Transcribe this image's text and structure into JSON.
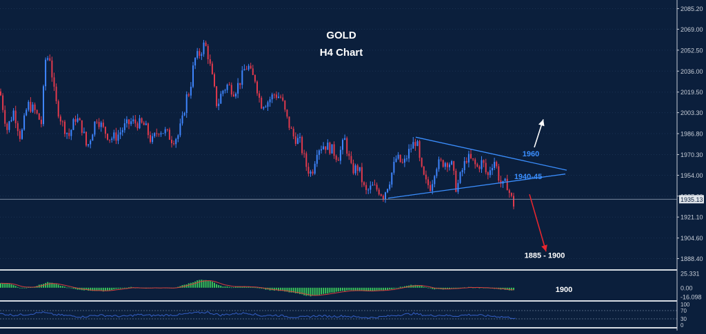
{
  "colors": {
    "background": "#0b1f3c",
    "grid": "#1a3253",
    "up_candle": "#3f86ff",
    "down_candle": "#e23a4d",
    "trendline": "#3b8fff",
    "label_blue": "#3b8fff",
    "bullish_arrow": "#ffffff",
    "bearish_arrow": "#e8262e",
    "macd_histogram": "#39c35a",
    "signal_line": "#d93f3f",
    "rsi_line": "#3560c8",
    "text": "#ffffff",
    "axis_text": "#c8ced8",
    "separator": "#d8dde4"
  },
  "chart_data": [
    {
      "type": "candlestick",
      "symbol": "GOLD",
      "title": "GOLD",
      "subtitle": "H4 Chart",
      "ylim": [
        1880,
        2092
      ],
      "y_ticks": [
        {
          "value": 2085.2,
          "label": "2085.20"
        },
        {
          "value": 2069.0,
          "label": "2069.00"
        },
        {
          "value": 2052.5,
          "label": "2052.50"
        },
        {
          "value": 2036.0,
          "label": "2036.00"
        },
        {
          "value": 2019.5,
          "label": "2019.50"
        },
        {
          "value": 2003.3,
          "label": "2003.30"
        },
        {
          "value": 1986.8,
          "label": "1986.80"
        },
        {
          "value": 1970.3,
          "label": "1970.30"
        },
        {
          "value": 1954.0,
          "label": "1954.00"
        },
        {
          "value": 1937.6,
          "label": "1937.60"
        },
        {
          "value": 1921.1,
          "label": "1921.10"
        },
        {
          "value": 1904.6,
          "label": "1904.60"
        },
        {
          "value": 1888.4,
          "label": "1888.40"
        }
      ],
      "current_price": 1935.13,
      "current_price_label": "1935.13",
      "price_path": [
        [
          0,
          2020
        ],
        [
          10,
          1990
        ],
        [
          20,
          2005
        ],
        [
          30,
          1983
        ],
        [
          40,
          2010
        ],
        [
          50,
          2005
        ],
        [
          60,
          1995
        ],
        [
          66,
          2045
        ],
        [
          72,
          2048
        ],
        [
          80,
          2013
        ],
        [
          90,
          1995
        ],
        [
          100,
          1985
        ],
        [
          110,
          2000
        ],
        [
          120,
          1990
        ],
        [
          126,
          1975
        ],
        [
          132,
          1985
        ],
        [
          140,
          2000
        ],
        [
          150,
          1990
        ],
        [
          160,
          1983
        ],
        [
          170,
          1985
        ],
        [
          180,
          1992
        ],
        [
          190,
          1996
        ],
        [
          200,
          1995
        ],
        [
          210,
          1993
        ],
        [
          220,
          1980
        ],
        [
          230,
          1990
        ],
        [
          240,
          1988
        ],
        [
          250,
          1982
        ],
        [
          258,
          1985
        ],
        [
          265,
          1998
        ],
        [
          270,
          2015
        ],
        [
          275,
          2020
        ],
        [
          282,
          2045
        ],
        [
          290,
          2050
        ],
        [
          297,
          2058
        ],
        [
          302,
          2048
        ],
        [
          308,
          2030
        ],
        [
          315,
          2008
        ],
        [
          322,
          2020
        ],
        [
          330,
          2025
        ],
        [
          340,
          2020
        ],
        [
          350,
          2030
        ],
        [
          355,
          2038
        ],
        [
          360,
          2040
        ],
        [
          365,
          2032
        ],
        [
          370,
          2030
        ],
        [
          378,
          2010
        ],
        [
          388,
          2012
        ],
        [
          398,
          2018
        ],
        [
          408,
          2015
        ],
        [
          415,
          2000
        ],
        [
          425,
          1985
        ],
        [
          435,
          1980
        ],
        [
          445,
          1960
        ],
        [
          452,
          1955
        ],
        [
          460,
          1975
        ],
        [
          470,
          1978
        ],
        [
          480,
          1975
        ],
        [
          490,
          1968
        ],
        [
          500,
          1982
        ],
        [
          510,
          1958
        ],
        [
          520,
          1960
        ],
        [
          530,
          1940
        ],
        [
          540,
          1945
        ],
        [
          550,
          1942
        ],
        [
          556,
          1938
        ],
        [
          565,
          1950
        ],
        [
          575,
          1968
        ],
        [
          585,
          1962
        ],
        [
          595,
          1975
        ],
        [
          604,
          1982
        ],
        [
          610,
          1960
        ],
        [
          617,
          1948
        ],
        [
          625,
          1945
        ],
        [
          632,
          1962
        ],
        [
          642,
          1964
        ],
        [
          650,
          1965
        ],
        [
          655,
          1962
        ],
        [
          662,
          1943
        ],
        [
          670,
          1957
        ],
        [
          677,
          1968
        ],
        [
          685,
          1965
        ],
        [
          692,
          1960
        ],
        [
          700,
          1965
        ],
        [
          707,
          1952
        ],
        [
          712,
          1962
        ],
        [
          718,
          1966
        ],
        [
          722,
          1955
        ],
        [
          728,
          1945
        ],
        [
          735,
          1948
        ],
        [
          740,
          1938
        ],
        [
          746,
          1930
        ]
      ],
      "trendlines": [
        {
          "from": [
            563,
            1936
          ],
          "to": [
            820,
            1955
          ]
        },
        {
          "from": [
            603,
            1984
          ],
          "to": [
            822,
            1958
          ]
        }
      ],
      "annotations": [
        {
          "text": "1960",
          "x": 770,
          "y": 1969,
          "color": "#3b8fff"
        },
        {
          "text": "1940-45",
          "x": 766,
          "y": 1951,
          "color": "#3b8fff"
        },
        {
          "text": "1885 - 1900",
          "x": 790,
          "y": 1889,
          "color": "#ffffff"
        }
      ],
      "arrows": [
        {
          "direction": "up",
          "from": [
            775,
            1976
          ],
          "to": [
            788,
            1998
          ],
          "color": "#ffffff"
        },
        {
          "direction": "down",
          "from": [
            768,
            1939
          ],
          "to": [
            792,
            1894
          ],
          "color": "#e8262e"
        }
      ]
    },
    {
      "type": "histogram",
      "indicator": "MACD",
      "ylim": [
        -22,
        30
      ],
      "y_ticks": [
        {
          "value": 25.331,
          "label": "25.331"
        },
        {
          "value": 0.0,
          "label": "0.00"
        },
        {
          "value": -16.098,
          "label": "-16.098"
        }
      ],
      "histogram_path": [
        [
          0,
          8
        ],
        [
          15,
          7
        ],
        [
          30,
          -1
        ],
        [
          50,
          2
        ],
        [
          70,
          10
        ],
        [
          90,
          3
        ],
        [
          110,
          -3
        ],
        [
          130,
          -5
        ],
        [
          150,
          -6
        ],
        [
          170,
          -2
        ],
        [
          190,
          1
        ],
        [
          210,
          -1
        ],
        [
          230,
          0
        ],
        [
          250,
          -1
        ],
        [
          270,
          6
        ],
        [
          290,
          14
        ],
        [
          305,
          12
        ],
        [
          320,
          3
        ],
        [
          335,
          1
        ],
        [
          350,
          2
        ],
        [
          370,
          1
        ],
        [
          390,
          -4
        ],
        [
          410,
          -6
        ],
        [
          430,
          -10
        ],
        [
          450,
          -15
        ],
        [
          470,
          -11
        ],
        [
          490,
          -7
        ],
        [
          510,
          -4
        ],
        [
          530,
          -6
        ],
        [
          550,
          -5
        ],
        [
          565,
          -3
        ],
        [
          580,
          1
        ],
        [
          595,
          5
        ],
        [
          610,
          4
        ],
        [
          625,
          -2
        ],
        [
          640,
          -3
        ],
        [
          660,
          -1
        ],
        [
          680,
          1
        ],
        [
          700,
          0
        ],
        [
          720,
          -2
        ],
        [
          748,
          -5
        ]
      ],
      "annotation": "1900"
    },
    {
      "type": "line",
      "indicator": "RSI",
      "ylim": [
        0,
        100
      ],
      "y_ticks": [
        {
          "value": 100,
          "label": "100"
        },
        {
          "value": 70,
          "label": "70"
        },
        {
          "value": 30,
          "label": "30"
        },
        {
          "value": 0,
          "label": "0"
        }
      ],
      "levels": [
        70,
        30
      ],
      "line_path": [
        [
          0,
          55
        ],
        [
          20,
          48
        ],
        [
          40,
          52
        ],
        [
          60,
          62
        ],
        [
          80,
          50
        ],
        [
          100,
          45
        ],
        [
          120,
          40
        ],
        [
          140,
          48
        ],
        [
          160,
          45
        ],
        [
          180,
          42
        ],
        [
          200,
          50
        ],
        [
          220,
          46
        ],
        [
          240,
          48
        ],
        [
          260,
          50
        ],
        [
          280,
          58
        ],
        [
          300,
          62
        ],
        [
          320,
          48
        ],
        [
          340,
          55
        ],
        [
          360,
          58
        ],
        [
          380,
          45
        ],
        [
          400,
          48
        ],
        [
          420,
          40
        ],
        [
          440,
          38
        ],
        [
          460,
          45
        ],
        [
          480,
          42
        ],
        [
          500,
          44
        ],
        [
          520,
          38
        ],
        [
          540,
          36
        ],
        [
          560,
          42
        ],
        [
          580,
          50
        ],
        [
          600,
          55
        ],
        [
          620,
          46
        ],
        [
          640,
          48
        ],
        [
          660,
          44
        ],
        [
          680,
          50
        ],
        [
          700,
          46
        ],
        [
          720,
          42
        ],
        [
          748,
          34
        ]
      ]
    }
  ]
}
